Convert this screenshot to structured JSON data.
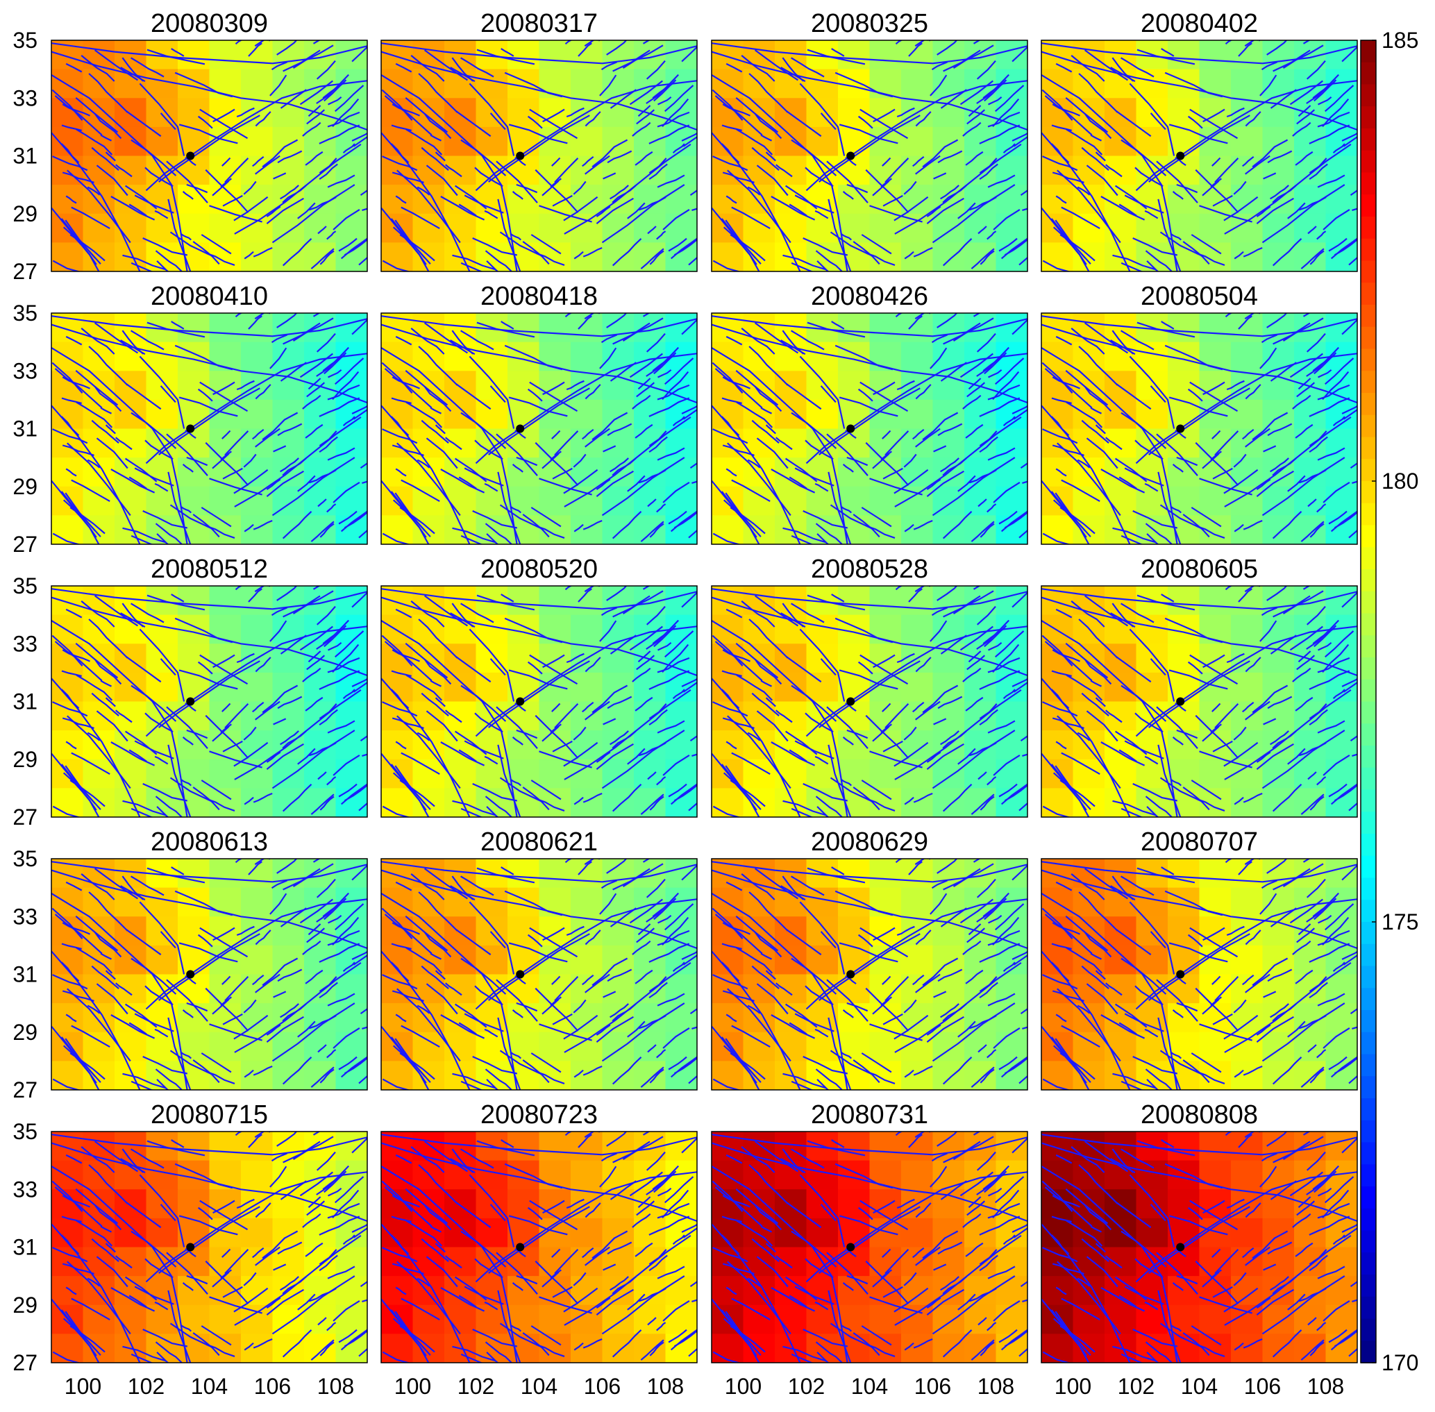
{
  "chart_data": {
    "type": "heatmap",
    "description_of_layout": "small multiples",
    "panels": [
      {
        "title": "20080309",
        "level": 179.4
      },
      {
        "title": "20080317",
        "level": 179.0
      },
      {
        "title": "20080325",
        "level": 178.6
      },
      {
        "title": "20080402",
        "level": 178.2
      },
      {
        "title": "20080410",
        "level": 177.9
      },
      {
        "title": "20080418",
        "level": 177.9
      },
      {
        "title": "20080426",
        "level": 177.8
      },
      {
        "title": "20080504",
        "level": 178.0
      },
      {
        "title": "20080512",
        "level": 177.9
      },
      {
        "title": "20080520",
        "level": 178.1
      },
      {
        "title": "20080528",
        "level": 178.3
      },
      {
        "title": "20080605",
        "level": 178.4
      },
      {
        "title": "20080613",
        "level": 178.7
      },
      {
        "title": "20080621",
        "level": 179.0
      },
      {
        "title": "20080629",
        "level": 179.3
      },
      {
        "title": "20080707",
        "level": 179.6
      },
      {
        "title": "20080715",
        "level": 180.5
      },
      {
        "title": "20080723",
        "level": 181.3
      },
      {
        "title": "20080731",
        "level": 182.1
      },
      {
        "title": "20080808",
        "level": 182.7
      }
    ],
    "x_ticks": [
      "100",
      "102",
      "104",
      "106",
      "108"
    ],
    "y_ticks": [
      "35",
      "33",
      "31",
      "29",
      "27"
    ],
    "xlim": [
      99,
      109
    ],
    "ylim": [
      27,
      35
    ],
    "colorbar": {
      "ticks": [
        "185",
        "180",
        "175",
        "170"
      ],
      "range": [
        170,
        185
      ],
      "colormap": "jet"
    },
    "overlay_line_color": "#1a1aff",
    "epicenter": {
      "lon": 103.4,
      "lat": 31.0,
      "color": "#000000"
    }
  }
}
